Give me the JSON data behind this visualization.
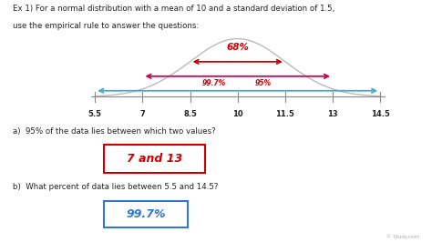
{
  "bg_color": "#ffffff",
  "title_line1": "Ex 1) For a normal distribution with a mean of 10 and a standard deviation of 1.5,",
  "title_line2": "use the empirical rule to answer the questions:",
  "tick_values": [
    5.5,
    7,
    8.5,
    10,
    11.5,
    13,
    14.5
  ],
  "tick_labels": [
    "5.5",
    "7",
    "8.5",
    "10",
    "11.5",
    "13",
    "14.5"
  ],
  "mean": 10,
  "std": 1.5,
  "curve_color": "#bbbbbb",
  "arrow_68_color": "#cc0000",
  "arrow_95_color": "#cc0055",
  "arrow_997_color": "#44aacc",
  "label_68": "68%",
  "label_95": "95%",
  "label_997": "99.7%",
  "question_a": "a)  95% of the data lies between which two values?",
  "answer_a": "7 and 13",
  "question_b": "b)  What percent of data lies between 5.5 and 14.5?",
  "answer_b": "99.7%",
  "answer_a_color": "#cc0000",
  "answer_b_color": "#3377cc",
  "axis_line_color": "#888888",
  "text_color": "#222222"
}
